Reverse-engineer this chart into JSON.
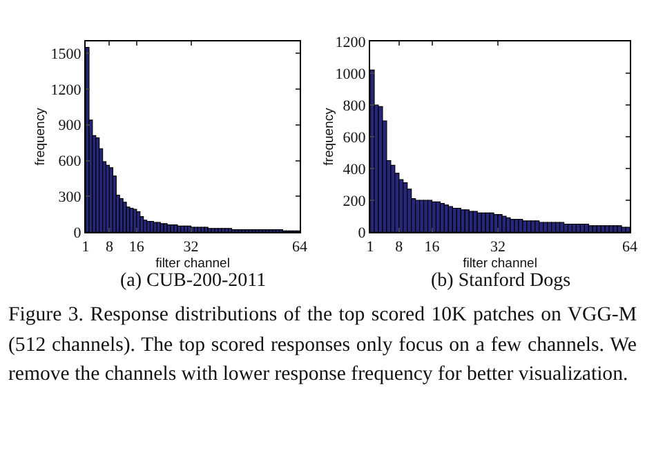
{
  "chart_data": [
    {
      "type": "histogram",
      "xlabel": "filter channel",
      "ylabel": "frequency",
      "annotations": [
        "(a) CUB-200-2011"
      ],
      "color": "#26267a",
      "grid": false,
      "bins": [
        1,
        2,
        3,
        4,
        5,
        6,
        7,
        8,
        9,
        10,
        11,
        12,
        13,
        14,
        15,
        16,
        17,
        18,
        19,
        20,
        21,
        22,
        23,
        24,
        25,
        26,
        27,
        28,
        29,
        30,
        31,
        32,
        33,
        34,
        35,
        36,
        37,
        38,
        39,
        40,
        41,
        42,
        43,
        44,
        45,
        46,
        47,
        48,
        49,
        50,
        51,
        52,
        53,
        54,
        55,
        56,
        57,
        58,
        59,
        60,
        61,
        62,
        63,
        64
      ],
      "values": [
        1550,
        940,
        810,
        790,
        700,
        590,
        560,
        540,
        470,
        310,
        280,
        250,
        210,
        200,
        190,
        170,
        130,
        100,
        90,
        90,
        80,
        80,
        70,
        70,
        60,
        60,
        60,
        50,
        50,
        50,
        50,
        40,
        40,
        40,
        40,
        40,
        30,
        30,
        30,
        30,
        30,
        30,
        30,
        20,
        20,
        20,
        20,
        20,
        20,
        20,
        20,
        20,
        20,
        20,
        20,
        20,
        20,
        20,
        10,
        10,
        10,
        10,
        10
      ],
      "xlim": [
        1,
        64
      ],
      "xticks": [
        1,
        8,
        16,
        32,
        64
      ],
      "ylim": [
        0,
        1600
      ],
      "yticks": [
        0,
        300,
        600,
        900,
        1200,
        1500
      ]
    },
    {
      "type": "histogram",
      "xlabel": "filter channel",
      "ylabel": "frequency",
      "annotations": [
        "(b) Stanford Dogs"
      ],
      "color": "#26267a",
      "grid": false,
      "bins": [
        1,
        2,
        3,
        4,
        5,
        6,
        7,
        8,
        9,
        10,
        11,
        12,
        13,
        14,
        15,
        16,
        17,
        18,
        19,
        20,
        21,
        22,
        23,
        24,
        25,
        26,
        27,
        28,
        29,
        30,
        31,
        32,
        33,
        34,
        35,
        36,
        37,
        38,
        39,
        40,
        41,
        42,
        43,
        44,
        45,
        46,
        47,
        48,
        49,
        50,
        51,
        52,
        53,
        54,
        55,
        56,
        57,
        58,
        59,
        60,
        61,
        62,
        63,
        64
      ],
      "values": [
        1020,
        800,
        790,
        700,
        450,
        420,
        370,
        330,
        310,
        270,
        210,
        200,
        200,
        200,
        200,
        190,
        190,
        180,
        170,
        160,
        150,
        150,
        140,
        140,
        130,
        130,
        120,
        120,
        120,
        120,
        110,
        110,
        100,
        90,
        80,
        80,
        80,
        70,
        70,
        70,
        70,
        60,
        60,
        60,
        60,
        60,
        60,
        50,
        50,
        50,
        50,
        50,
        50,
        40,
        40,
        40,
        40,
        40,
        40,
        40,
        40,
        30,
        30
      ],
      "xlim": [
        1,
        64
      ],
      "xticks": [
        1,
        8,
        16,
        32,
        64
      ],
      "ylim": [
        0,
        1200
      ],
      "yticks": [
        0,
        200,
        400,
        600,
        800,
        1000,
        1200
      ]
    },
    {
      "type": "other",
      "annotations": [
        "Figure 3. Response distributions of the top scored 10K patches on VGG-M (512 channels). The top scored responses only focus on a few channels. We remove the channels with lower response frequency for better visualization."
      ]
    }
  ]
}
